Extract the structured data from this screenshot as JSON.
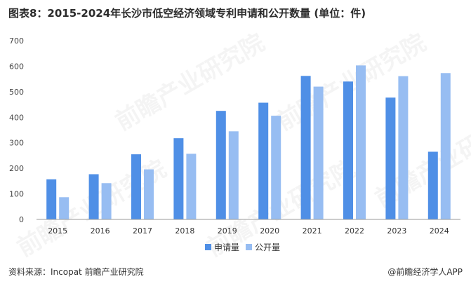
{
  "title": "图表8：2015-2024年长沙市低空经济领域专利申请和公开数量 (单位：件)",
  "watermark": "前瞻产业研究院",
  "footer": {
    "source": "资料来源：Incopat 前瞻产业研究院",
    "brand": "@前瞻经济学人APP"
  },
  "colors": {
    "apply": "#4f8fe6",
    "publish": "#97bdf2",
    "axis": "#9a9a9a"
  },
  "chart_data": {
    "type": "bar",
    "categories": [
      "2015",
      "2016",
      "2017",
      "2018",
      "2019",
      "2020",
      "2021",
      "2022",
      "2023",
      "2024"
    ],
    "series": [
      {
        "name": "申请量",
        "values": [
          157,
          177,
          255,
          318,
          425,
          457,
          562,
          540,
          477,
          265
        ]
      },
      {
        "name": "公开量",
        "values": [
          87,
          142,
          196,
          257,
          345,
          406,
          520,
          603,
          561,
          573
        ]
      }
    ],
    "ylim": [
      0,
      700
    ],
    "yticks": [
      "0",
      "100",
      "200",
      "300",
      "400",
      "500",
      "600",
      "700"
    ],
    "legend_position": "bottom-center",
    "grid": false
  }
}
